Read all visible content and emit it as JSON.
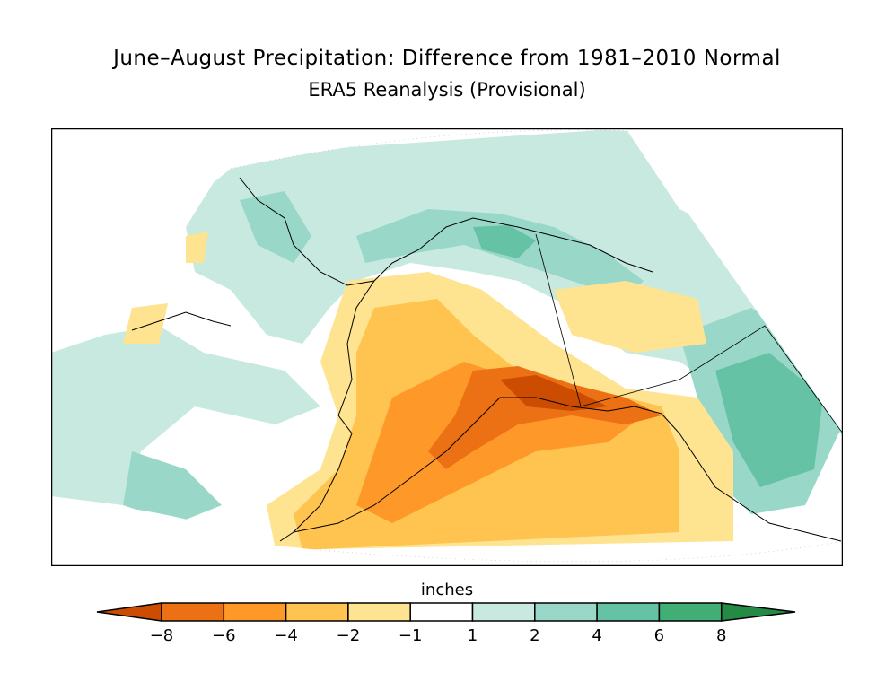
{
  "title": "June–August Precipitation: Difference from 1981–2010 Normal",
  "subtitle": "ERA5 Reanalysis (Provisional)",
  "colorbar": {
    "unit_label": "inches",
    "tick_labels": [
      "−8",
      "−6",
      "−4",
      "−2",
      "−1",
      "1",
      "2",
      "4",
      "6",
      "8"
    ],
    "bin_colors": [
      "#ec7014",
      "#fe9929",
      "#fec44f",
      "#fee391",
      "#ffffff",
      "#c7e9e0",
      "#99d8c9",
      "#66c2a4",
      "#41ae76"
    ],
    "low_extend_color": "#cc4c02",
    "high_extend_color": "#238b45"
  },
  "map": {
    "region": "Alaska and surrounding seas",
    "dry_colors": [
      "#fee391",
      "#fec44f",
      "#fe9929",
      "#ec7014",
      "#cc4c02"
    ],
    "wet_colors": [
      "#c7e9e0",
      "#99d8c9",
      "#66c2a4",
      "#41ae76"
    ]
  }
}
